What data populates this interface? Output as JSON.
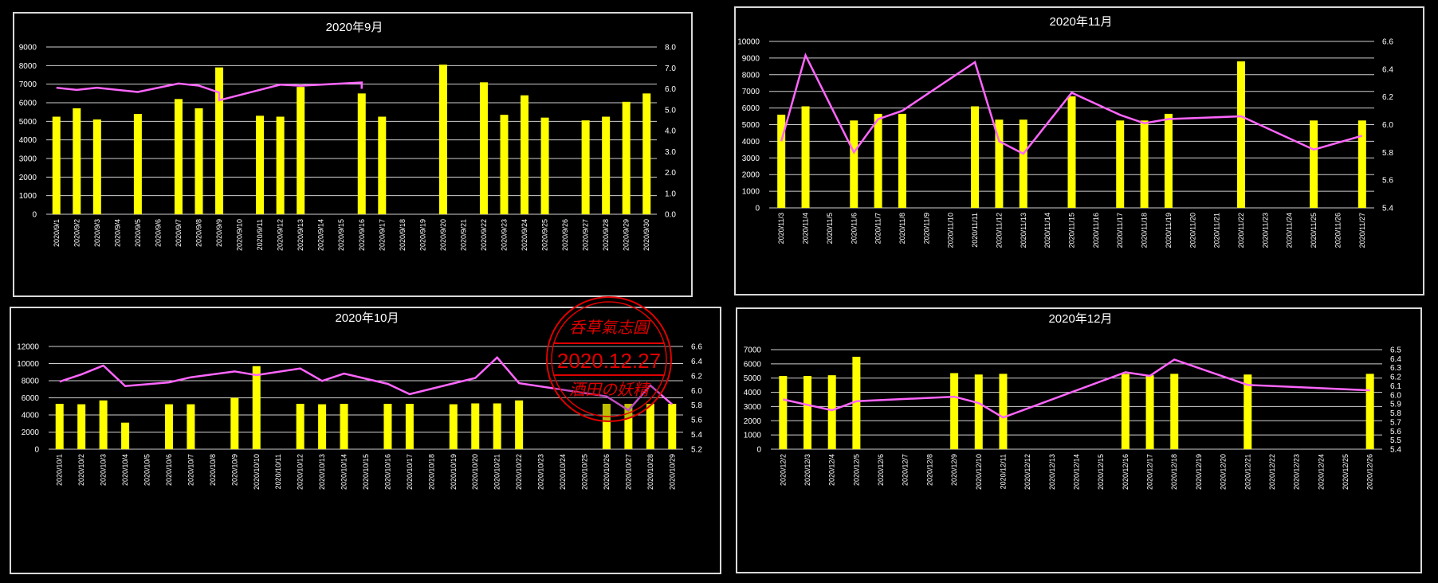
{
  "chart_data": [
    {
      "type": "bar+line",
      "title": "2020年9月",
      "y_ticks": [
        "0",
        "1000",
        "2000",
        "3000",
        "4000",
        "5000",
        "6000",
        "7000",
        "8000",
        "9000"
      ],
      "y2_ticks": [
        "0.0",
        "1.0",
        "2.0",
        "3.0",
        "4.0",
        "5.0",
        "6.0",
        "7.0",
        "8.0"
      ],
      "ylim": [
        0,
        9000
      ],
      "y2lim": [
        0,
        8
      ],
      "categories": [
        "2020/9/1",
        "2020/9/2",
        "2020/9/3",
        "2020/9/4",
        "2020/9/5",
        "2020/9/6",
        "2020/9/7",
        "2020/9/8",
        "2020/9/9",
        "2020/9/10",
        "2020/9/11",
        "2020/9/12",
        "2020/9/13",
        "2020/9/14",
        "2020/9/15",
        "2020/9/16",
        "2020/9/17",
        "2020/9/18",
        "2020/9/19",
        "2020/9/20",
        "2020/9/21",
        "2020/9/22",
        "2020/9/23",
        "2020/9/24",
        "2020/9/25",
        "2020/9/26",
        "2020/9/27",
        "2020/9/28",
        "2020/9/29",
        "2020/9/30"
      ],
      "bars": [
        5250,
        5700,
        5100,
        null,
        5400,
        null,
        6200,
        5700,
        7900,
        null,
        5300,
        5250,
        6850,
        null,
        null,
        6500,
        5250,
        null,
        null,
        8050,
        null,
        7100,
        5350,
        6400,
        5200,
        null,
        5050,
        5250,
        6050,
        6500
      ],
      "line": [
        {
          "x": "2020/9/1",
          "y": 6.05
        },
        {
          "x": "2020/9/2",
          "y": 5.95
        },
        {
          "x": "2020/9/3",
          "y": 6.05
        },
        {
          "x": "2020/9/5",
          "y": 5.85
        },
        {
          "x": "2020/9/7",
          "y": 6.25
        },
        {
          "x": "2020/9/8",
          "y": 6.15
        },
        {
          "x": "2020/9/9",
          "y": 5.82
        },
        {
          "x": "2020/9/9",
          "y": 5.45
        },
        {
          "x": "2020/9/11",
          "y": 5.95
        },
        {
          "x": "2020/9/12",
          "y": 6.2
        },
        {
          "x": "2020/9/13",
          "y": 6.15
        },
        {
          "x": "2020/9/16",
          "y": 6.3
        },
        {
          "x": "2020/9/16",
          "y": 6.05
        },
        {
          "x": "2020/9/16",
          "y": 6.0
        },
        {
          "x": "2020/9/16",
          "y": 6.05
        },
        {
          "x": "2020/9/16",
          "y": 6.05
        },
        {
          "x": "2020/9/16",
          "y": 6.0
        },
        {
          "x": "2020/9/16",
          "y": 6.05
        },
        {
          "x": "2020/9/16",
          "y": 6.05
        },
        {
          "x": "2020/9/16",
          "y": 6.05
        },
        {
          "x": "2020/9/16",
          "y": 6.05
        },
        {
          "x": "2020/9/16",
          "y": 6.05
        },
        {
          "x": "2020/9/16",
          "y": 6.05
        },
        {
          "x": "2020/9/16",
          "y": 6.05
        }
      ]
    },
    {
      "type": "bar+line",
      "title": "2020年11月",
      "y_ticks": [
        "0",
        "1000",
        "2000",
        "3000",
        "4000",
        "5000",
        "6000",
        "7000",
        "8000",
        "9000",
        "10000"
      ],
      "y2_ticks": [
        "5.4",
        "5.6",
        "5.8",
        "6.0",
        "6.2",
        "6.4",
        "6.6"
      ],
      "ylim": [
        0,
        10000
      ],
      "y2lim": [
        5.4,
        6.6
      ],
      "categories": [
        "2020/11/3",
        "2020/11/4",
        "2020/11/5",
        "2020/11/6",
        "2020/11/7",
        "2020/11/8",
        "2020/11/9",
        "2020/11/10",
        "2020/11/11",
        "2020/11/12",
        "2020/11/13",
        "2020/11/14",
        "2020/11/15",
        "2020/11/16",
        "2020/11/17",
        "2020/11/18",
        "2020/11/19",
        "2020/11/20",
        "2020/11/21",
        "2020/11/22",
        "2020/11/23",
        "2020/11/24",
        "2020/11/25",
        "2020/11/26",
        "2020/11/27"
      ],
      "bars": [
        5600,
        6100,
        null,
        5250,
        5650,
        5650,
        null,
        null,
        6100,
        5300,
        5300,
        null,
        6700,
        null,
        5250,
        5250,
        5650,
        null,
        null,
        8800,
        null,
        null,
        5250,
        null,
        5250
      ],
      "line": [
        {
          "x": "2020/11/3",
          "y": 5.88
        },
        {
          "x": "2020/11/4",
          "y": 6.5
        },
        {
          "x": "2020/11/6",
          "y": 5.8
        },
        {
          "x": "2020/11/7",
          "y": 6.04
        },
        {
          "x": "2020/11/8",
          "y": 6.1
        },
        {
          "x": "2020/11/11",
          "y": 6.45
        },
        {
          "x": "2020/11/12",
          "y": 5.88
        },
        {
          "x": "2020/11/13",
          "y": 5.79
        },
        {
          "x": "2020/11/15",
          "y": 6.23
        },
        {
          "x": "2020/11/17",
          "y": 6.07
        },
        {
          "x": "2020/11/18",
          "y": 6.01
        },
        {
          "x": "2020/11/19",
          "y": 6.04
        },
        {
          "x": "2020/11/22",
          "y": 6.06
        },
        {
          "x": "2020/11/25",
          "y": 5.82
        },
        {
          "x": "2020/11/27",
          "y": 5.92
        }
      ]
    },
    {
      "type": "bar+line",
      "title": "2020年10月",
      "y_ticks": [
        "0",
        "2000",
        "4000",
        "6000",
        "8000",
        "10000",
        "12000"
      ],
      "y2_ticks": [
        "5.2",
        "5.4",
        "5.6",
        "5.8",
        "6.0",
        "6.2",
        "6.4",
        "6.6"
      ],
      "ylim": [
        0,
        12000
      ],
      "y2lim": [
        5.2,
        6.6
      ],
      "categories": [
        "2020/10/1",
        "2020/10/2",
        "2020/10/3",
        "2020/10/4",
        "2020/10/5",
        "2020/10/6",
        "2020/10/7",
        "2020/10/8",
        "2020/10/9",
        "2020/10/10",
        "2020/10/11",
        "2020/10/12",
        "2020/10/13",
        "2020/10/14",
        "2020/10/15",
        "2020/10/16",
        "2020/10/17",
        "2020/10/18",
        "2020/10/19",
        "2020/10/20",
        "2020/10/21",
        "2020/10/22",
        "2020/10/23",
        "2020/10/24",
        "2020/10/25",
        "2020/10/26",
        "2020/10/27",
        "2020/10/28",
        "2020/10/29"
      ],
      "bars": [
        5300,
        5250,
        5700,
        3100,
        null,
        5250,
        5250,
        null,
        6000,
        9700,
        null,
        5300,
        5250,
        5300,
        null,
        5300,
        5300,
        null,
        5250,
        5350,
        5350,
        5700,
        null,
        null,
        null,
        5300,
        5300,
        5300,
        5300
      ],
      "line": [
        {
          "x": "2020/10/1",
          "y": 6.12
        },
        {
          "x": "2020/10/2",
          "y": 6.22
        },
        {
          "x": "2020/10/3",
          "y": 6.34
        },
        {
          "x": "2020/10/4",
          "y": 6.06
        },
        {
          "x": "2020/10/6",
          "y": 6.11
        },
        {
          "x": "2020/10/7",
          "y": 6.18
        },
        {
          "x": "2020/10/9",
          "y": 6.26
        },
        {
          "x": "2020/10/10",
          "y": 6.21
        },
        {
          "x": "2020/10/12",
          "y": 6.3
        },
        {
          "x": "2020/10/13",
          "y": 6.13
        },
        {
          "x": "2020/10/14",
          "y": 6.23
        },
        {
          "x": "2020/10/16",
          "y": 6.09
        },
        {
          "x": "2020/10/17",
          "y": 5.95
        },
        {
          "x": "2020/10/20",
          "y": 6.17
        },
        {
          "x": "2020/10/21",
          "y": 6.45
        },
        {
          "x": "2020/10/22",
          "y": 6.1
        },
        {
          "x": "2020/10/26",
          "y": 5.92
        },
        {
          "x": "2020/10/27",
          "y": 5.73
        },
        {
          "x": "2020/10/28",
          "y": 6.07
        },
        {
          "x": "2020/10/29",
          "y": 5.81
        }
      ]
    },
    {
      "type": "bar+line",
      "title": "2020年12月",
      "y_ticks": [
        "0",
        "1000",
        "2000",
        "3000",
        "4000",
        "5000",
        "6000",
        "7000"
      ],
      "y2_ticks": [
        "5.4",
        "5.5",
        "5.6",
        "5.7",
        "5.8",
        "5.9",
        "6.0",
        "6.1",
        "6.2",
        "6.3",
        "6.4",
        "6.5"
      ],
      "ylim": [
        0,
        7000
      ],
      "y2lim": [
        5.4,
        6.5
      ],
      "categories": [
        "2020/12/2",
        "2020/12/3",
        "2020/12/4",
        "2020/12/5",
        "2020/12/6",
        "2020/12/7",
        "2020/12/8",
        "2020/12/9",
        "2020/12/10",
        "2020/12/11",
        "2020/12/12",
        "2020/12/13",
        "2020/12/14",
        "2020/12/15",
        "2020/12/16",
        "2020/12/17",
        "2020/12/18",
        "2020/12/19",
        "2020/12/20",
        "2020/12/21",
        "2020/12/22",
        "2020/12/23",
        "2020/12/24",
        "2020/12/25",
        "2020/12/26"
      ],
      "bars": [
        5150,
        5150,
        5200,
        6500,
        null,
        null,
        null,
        5350,
        5250,
        5300,
        null,
        null,
        null,
        null,
        5300,
        5200,
        5300,
        null,
        null,
        5250,
        null,
        null,
        null,
        null,
        5300
      ],
      "line": [
        {
          "x": "2020/12/2",
          "y": 5.95
        },
        {
          "x": "2020/12/3",
          "y": 5.89
        },
        {
          "x": "2020/12/4",
          "y": 5.83
        },
        {
          "x": "2020/12/5",
          "y": 5.93
        },
        {
          "x": "2020/12/9",
          "y": 5.98
        },
        {
          "x": "2020/12/10",
          "y": 5.91
        },
        {
          "x": "2020/12/11",
          "y": 5.75
        },
        {
          "x": "2020/12/16",
          "y": 6.25
        },
        {
          "x": "2020/12/17",
          "y": 6.21
        },
        {
          "x": "2020/12/18",
          "y": 6.39
        },
        {
          "x": "2020/12/21",
          "y": 6.11
        },
        {
          "x": "2020/12/26",
          "y": 6.05
        }
      ]
    }
  ],
  "stamp": {
    "line1": "呑草氣志圓",
    "line2": "2020.12.27",
    "line3": "酒田の妖精",
    "color": "#e00000"
  },
  "colors": {
    "bar": "#ffff00",
    "line": "#ff66ff",
    "background": "#000000"
  }
}
